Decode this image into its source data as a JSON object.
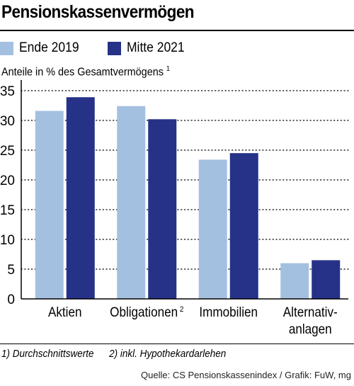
{
  "chart_data": {
    "type": "bar",
    "title": "Pensionskassenvermögen",
    "ylabel": "Anteile in % des Gesamtvermögens",
    "ylabel_footnote": "1",
    "categories": [
      {
        "label": "Aktien",
        "footnote": ""
      },
      {
        "label": "Obligationen",
        "footnote": "2"
      },
      {
        "label": "Immobilien",
        "footnote": ""
      },
      {
        "label": "Alternativ-\nanlagen",
        "footnote": ""
      }
    ],
    "series": [
      {
        "name": "Ende 2019",
        "color": "#a4c0e0",
        "values": [
          31.6,
          32.4,
          23.4,
          6.0
        ]
      },
      {
        "name": "Mitte 2021",
        "color": "#263287",
        "values": [
          33.9,
          30.2,
          24.5,
          6.5
        ]
      }
    ],
    "ylim": [
      0,
      35
    ],
    "yticks": [
      "0",
      "5",
      "10",
      "15",
      "20",
      "25",
      "30",
      "35"
    ],
    "grid": "dotted-horizontal",
    "legend_position": "top-left"
  },
  "footnotes": [
    "1) Durchschnittswerte",
    "2) inkl. Hypothekardarlehen"
  ],
  "source": "Quelle: CS Pensionskassenindex / Grafik: FuW, mg"
}
